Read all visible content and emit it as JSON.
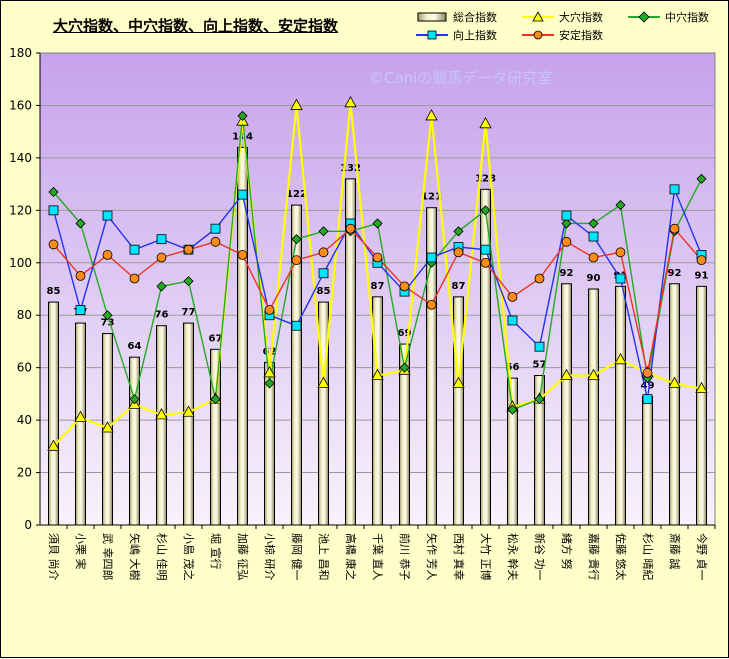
{
  "chart_data": {
    "type": "bar",
    "title": "大穴指数、中穴指数、向上指数、安定指数",
    "watermark": "©Caniの競馬データ研究室",
    "ylim": [
      0,
      180
    ],
    "yticks": [
      0,
      20,
      40,
      60,
      80,
      100,
      120,
      140,
      160,
      180
    ],
    "grid": true,
    "legend_position": "top-right",
    "categories": [
      "須貝 尚介",
      "小栗 実",
      "武 幸四郎",
      "矢嶋 大樹",
      "杉山 佳明",
      "小島 茂之",
      "堀 宣行",
      "加藤 征弘",
      "小椋 研介",
      "藤岡 健一",
      "池上 昌和",
      "高橋 康之",
      "千葉 直人",
      "前川 恭子",
      "矢作 芳人",
      "西村 真幸",
      "大竹 正博",
      "松永 幹夫",
      "新谷 功一",
      "緒方 努",
      "嘉藤 貴行",
      "佐藤 悠太",
      "杉山 晴紀",
      "斎藤 誠",
      "今野 貞一"
    ],
    "series": [
      {
        "name": "総合指数",
        "kind": "bar",
        "color": "#e8e4b0",
        "values": [
          85,
          77,
          73,
          64,
          76,
          77,
          67,
          144,
          62,
          122,
          85,
          132,
          87,
          69,
          121,
          87,
          128,
          56,
          57,
          92,
          90,
          91,
          49,
          92,
          91
        ]
      },
      {
        "name": "大穴指数",
        "kind": "line",
        "color": "#ffff00",
        "marker": "triangle",
        "values": [
          30,
          41,
          37,
          46,
          42,
          43,
          48,
          154,
          58,
          160,
          54,
          161,
          57,
          59,
          156,
          54,
          153,
          45,
          48,
          57,
          57,
          63,
          58,
          54,
          52
        ]
      },
      {
        "name": "中穴指数",
        "kind": "line",
        "color": "#22aa22",
        "marker": "diamond",
        "values": [
          127,
          115,
          80,
          48,
          91,
          93,
          48,
          156,
          54,
          109,
          112,
          112,
          115,
          60,
          100,
          112,
          120,
          44,
          48,
          115,
          115,
          122,
          56,
          112,
          132
        ]
      },
      {
        "name": "向上指数",
        "kind": "line",
        "color": "#2233ee",
        "marker": "square",
        "values": [
          120,
          82,
          118,
          105,
          109,
          105,
          113,
          126,
          80,
          76,
          96,
          115,
          100,
          89,
          102,
          106,
          105,
          78,
          68,
          118,
          110,
          94,
          48,
          128,
          103
        ]
      },
      {
        "name": "安定指数",
        "kind": "line",
        "color": "#ee3322",
        "marker": "circle",
        "values": [
          107,
          95,
          103,
          94,
          102,
          105,
          108,
          103,
          82,
          101,
          104,
          113,
          102,
          91,
          84,
          104,
          100,
          87,
          94,
          108,
          102,
          104,
          58,
          113,
          101
        ]
      }
    ]
  }
}
